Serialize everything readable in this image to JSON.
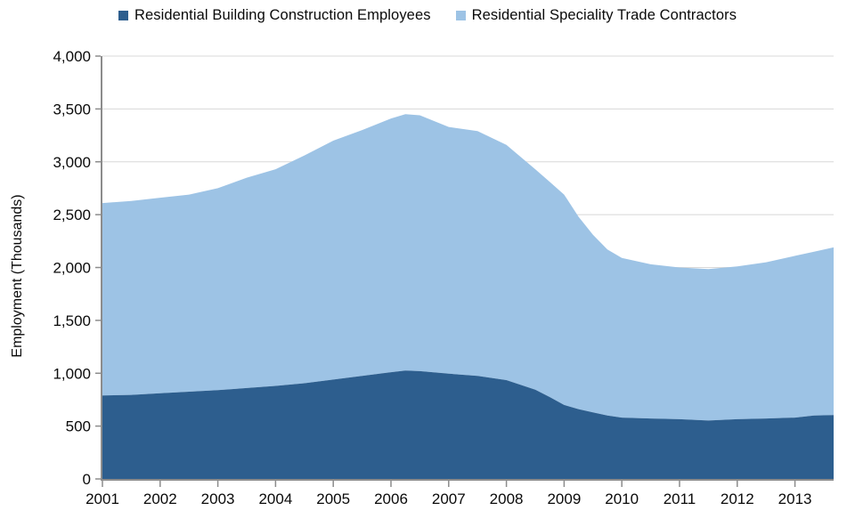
{
  "chart_data": {
    "type": "area",
    "stacked": true,
    "title": "",
    "xlabel": "",
    "ylabel": "Employment (Thousands)",
    "legend_position": "top",
    "grid": "horizontal",
    "ylim": [
      0,
      4000
    ],
    "xrange": [
      2001.0,
      2013.67
    ],
    "yticks": [
      {
        "v": 0,
        "label": "0"
      },
      {
        "v": 500,
        "label": "500"
      },
      {
        "v": 1000,
        "label": "1,000"
      },
      {
        "v": 1500,
        "label": "1,500"
      },
      {
        "v": 2000,
        "label": "2,000"
      },
      {
        "v": 2500,
        "label": "2,500"
      },
      {
        "v": 3000,
        "label": "3,000"
      },
      {
        "v": 3500,
        "label": "3,500"
      },
      {
        "v": 4000,
        "label": "4,000"
      }
    ],
    "xticks": [
      {
        "v": 2001,
        "label": "2001"
      },
      {
        "v": 2002,
        "label": "2002"
      },
      {
        "v": 2003,
        "label": "2003"
      },
      {
        "v": 2004,
        "label": "2004"
      },
      {
        "v": 2005,
        "label": "2005"
      },
      {
        "v": 2006,
        "label": "2006"
      },
      {
        "v": 2007,
        "label": "2007"
      },
      {
        "v": 2008,
        "label": "2008"
      },
      {
        "v": 2009,
        "label": "2009"
      },
      {
        "v": 2010,
        "label": "2010"
      },
      {
        "v": 2011,
        "label": "2011"
      },
      {
        "v": 2012,
        "label": "2012"
      },
      {
        "v": 2013,
        "label": "2013"
      }
    ],
    "x": [
      2001.0,
      2001.5,
      2002.0,
      2002.5,
      2003.0,
      2003.5,
      2004.0,
      2004.5,
      2005.0,
      2005.5,
      2006.0,
      2006.25,
      2006.5,
      2007.0,
      2007.5,
      2008.0,
      2008.5,
      2008.75,
      2009.0,
      2009.25,
      2009.5,
      2009.75,
      2010.0,
      2010.5,
      2011.0,
      2011.5,
      2012.0,
      2012.5,
      2013.0,
      2013.33,
      2013.67
    ],
    "series": [
      {
        "name": "Residential Building Construction Employees",
        "color": "#2D5E8E",
        "values": [
          790,
          795,
          810,
          825,
          840,
          860,
          880,
          905,
          940,
          975,
          1010,
          1025,
          1020,
          995,
          975,
          935,
          845,
          775,
          700,
          660,
          630,
          600,
          580,
          572,
          565,
          552,
          565,
          572,
          580,
          600,
          605
        ]
      },
      {
        "name": "Residential Speciality Trade Contractors",
        "color": "#9DC3E5",
        "values": [
          1820,
          1835,
          1850,
          1865,
          1910,
          1990,
          2050,
          2155,
          2260,
          2325,
          2400,
          2425,
          2420,
          2335,
          2315,
          2225,
          2085,
          2035,
          1990,
          1820,
          1680,
          1570,
          1510,
          1458,
          1435,
          1433,
          1445,
          1478,
          1530,
          1550,
          1585
        ]
      }
    ],
    "colors": {
      "gridline": "#D8D8D8",
      "axis": "#8C8C8C",
      "text": "#0A0A0A"
    }
  }
}
